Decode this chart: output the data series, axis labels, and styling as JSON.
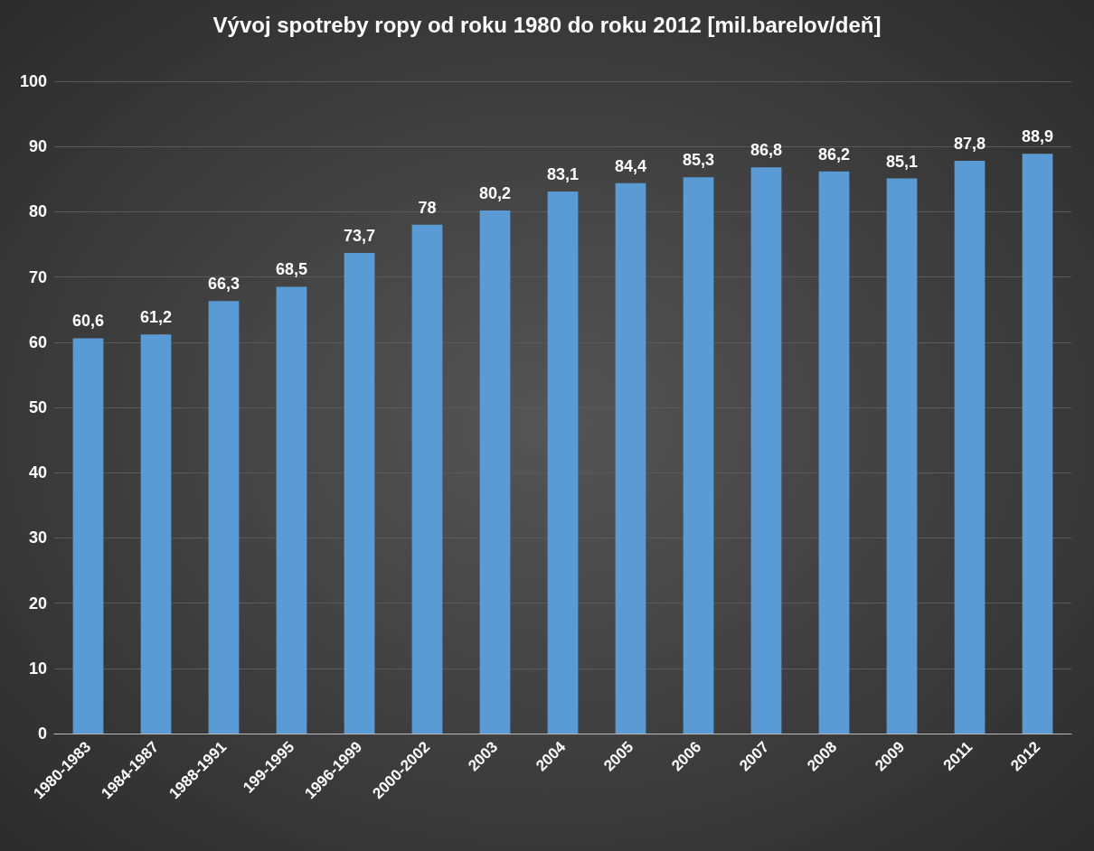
{
  "chart_data": {
    "type": "bar",
    "title": "Vývoj spotreby ropy od roku 1980 do roku 2012 [mil.barelov/deň]",
    "categories": [
      "1980-1983",
      "1984-1987",
      "1988-1991",
      "199-1995",
      "1996-1999",
      "2000-2002",
      "2003",
      "2004",
      "2005",
      "2006",
      "2007",
      "2008",
      "2009",
      "2011",
      "2012"
    ],
    "values": [
      60.6,
      61.2,
      66.3,
      68.5,
      73.7,
      78,
      80.2,
      83.1,
      84.4,
      85.3,
      86.8,
      86.2,
      85.1,
      87.8,
      88.9
    ],
    "color": "#5b9bd5",
    "value_labels": [
      "60,6",
      "61,2",
      "66,3",
      "68,5",
      "73,7",
      "78",
      "80,2",
      "83,1",
      "84,4",
      "85,3",
      "86,8",
      "86,2",
      "85,1",
      "87,8",
      "88,9"
    ],
    "ylim": [
      0,
      100
    ],
    "yticks": [
      0,
      10,
      20,
      30,
      40,
      50,
      60,
      70,
      80,
      90,
      100
    ],
    "grid": true
  }
}
